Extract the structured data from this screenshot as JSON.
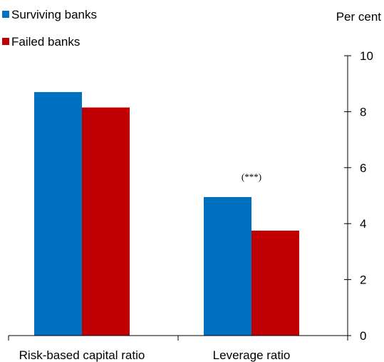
{
  "chart_data": {
    "type": "bar",
    "categories": [
      "Risk-based capital ratio",
      "Leverage ratio"
    ],
    "series": [
      {
        "name": "Surviving banks",
        "color": "#0070C0",
        "values": [
          8.7,
          4.95
        ]
      },
      {
        "name": "Failed banks",
        "color": "#C00000",
        "values": [
          8.15,
          3.75
        ]
      }
    ],
    "unit_label": "Per cent",
    "ylim": [
      0,
      10
    ],
    "yticks": [
      0,
      2,
      4,
      6,
      8,
      10
    ],
    "y_axis_side": "right",
    "annotations": [
      {
        "category": "Leverage ratio",
        "text": "(***)"
      }
    ],
    "legend_position": "top-left",
    "grid": false
  }
}
